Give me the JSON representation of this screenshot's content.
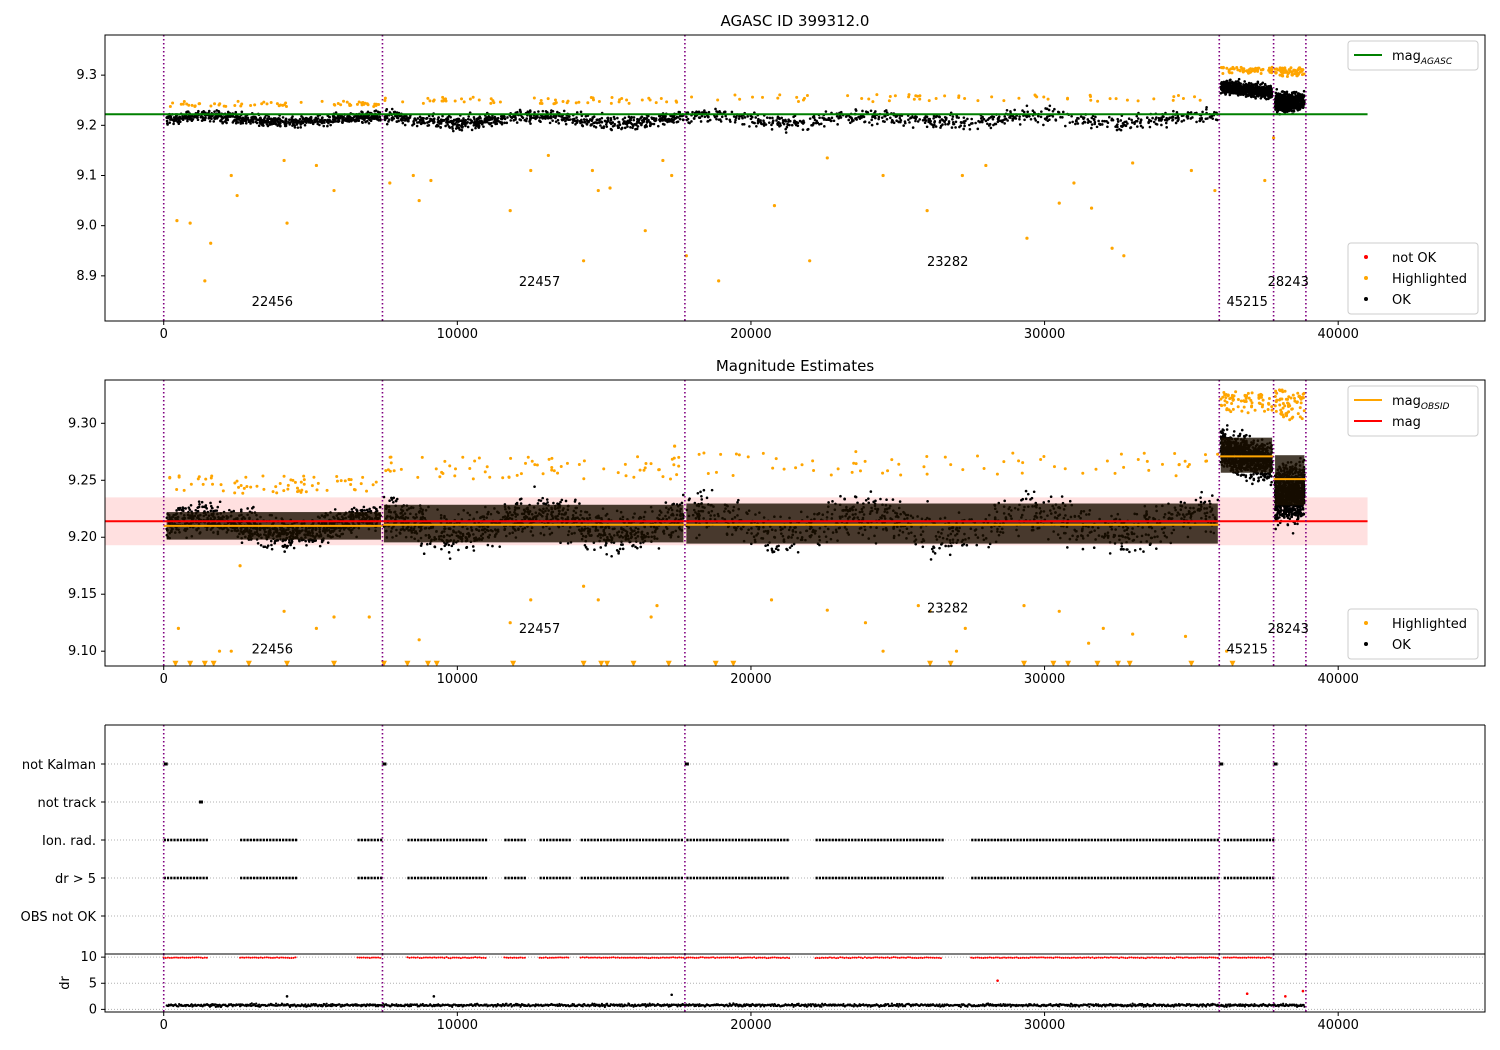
{
  "chart_data": [
    {
      "type": "scatter",
      "title": "AGASC ID 399312.0",
      "xlim": [
        -2000,
        45000
      ],
      "ylim": [
        8.81,
        9.38
      ],
      "xticks": [
        0,
        10000,
        20000,
        30000,
        40000
      ],
      "yticks": [
        8.9,
        9.0,
        9.1,
        9.2,
        9.3
      ],
      "grid": false,
      "obsid_boundaries": [
        0,
        7450,
        17750,
        35950,
        37800,
        38900
      ],
      "obsid_labels": [
        {
          "text": "22456",
          "x": 3700,
          "y": 8.84
        },
        {
          "text": "22457",
          "x": 12800,
          "y": 8.88
        },
        {
          "text": "23282",
          "x": 26700,
          "y": 8.92
        },
        {
          "text": "45215",
          "x": 36900,
          "y": 8.84
        },
        {
          "text": "28243",
          "x": 38300,
          "y": 8.88
        }
      ],
      "series": [
        {
          "name": "mag$_{AGASC}$",
          "kind": "line",
          "color": "#008000",
          "x": [
            -2000,
            41000
          ],
          "y": [
            9.222,
            9.222
          ]
        },
        {
          "name": "not OK",
          "kind": "points",
          "color": "#ff0000"
        },
        {
          "name": "Highlighted",
          "kind": "points",
          "color": "#ffa500",
          "x": [
            450,
            900,
            1400,
            1600,
            2300,
            2500,
            4100,
            4200,
            5200,
            5800,
            7700,
            8500,
            8700,
            9100,
            11800,
            12500,
            13100,
            14300,
            14600,
            14800,
            15200,
            16400,
            17000,
            17300,
            17800,
            18900,
            20800,
            22000,
            22600,
            24500,
            26000,
            27200,
            28000,
            29400,
            30500,
            31000,
            31600,
            32300,
            32700,
            33000,
            35000,
            35800,
            37500,
            37800
          ],
          "y": [
            9.01,
            9.005,
            8.89,
            8.965,
            9.1,
            9.06,
            9.13,
            9.005,
            9.12,
            9.07,
            9.085,
            9.1,
            9.05,
            9.09,
            9.03,
            9.11,
            9.14,
            8.93,
            9.11,
            9.07,
            9.075,
            8.99,
            9.13,
            9.1,
            8.94,
            8.89,
            9.04,
            8.93,
            9.135,
            9.1,
            9.03,
            9.1,
            9.12,
            8.975,
            9.045,
            9.085,
            9.035,
            8.955,
            8.94,
            9.125,
            9.11,
            9.07,
            9.09,
            9.175
          ]
        },
        {
          "name": "OK",
          "kind": "band",
          "color": "#000000",
          "segments": [
            {
              "x0": 100,
              "x1": 7400,
              "center": 9.212,
              "half": 0.018
            },
            {
              "x0": 7500,
              "x1": 17700,
              "center": 9.212,
              "half": 0.022
            },
            {
              "x0": 17800,
              "x1": 35900,
              "center": 9.212,
              "half": 0.025
            },
            {
              "x0": 36000,
              "x1": 37750,
              "center": 9.272,
              "half": 0.022
            },
            {
              "x0": 37850,
              "x1": 38850,
              "center": 9.255,
              "half": 0.03
            }
          ]
        }
      ],
      "legends": [
        {
          "position": "upper right",
          "entries": [
            {
              "label": "mag$_{AGASC}$",
              "marker": "line",
              "color": "#008000"
            }
          ]
        },
        {
          "position": "lower right",
          "entries": [
            {
              "label": "not OK",
              "marker": "dot",
              "color": "#ff0000"
            },
            {
              "label": "Highlighted",
              "marker": "dot",
              "color": "#ffa500"
            },
            {
              "label": "OK",
              "marker": "dot",
              "color": "#000000"
            }
          ]
        }
      ]
    },
    {
      "type": "scatter",
      "title": "Magnitude Estimates",
      "xlim": [
        -2000,
        45000
      ],
      "ylim": [
        9.087,
        9.338
      ],
      "xticks": [
        0,
        10000,
        20000,
        30000,
        40000
      ],
      "yticks": [
        9.1,
        9.15,
        9.2,
        9.25,
        9.3
      ],
      "grid": false,
      "obsid_boundaries": [
        0,
        7450,
        17750,
        35950,
        37800,
        38900
      ],
      "obsid_labels": [
        {
          "text": "22456",
          "x": 3700,
          "y": 9.098
        },
        {
          "text": "22457",
          "x": 12800,
          "y": 9.116
        },
        {
          "text": "23282",
          "x": 26700,
          "y": 9.134
        },
        {
          "text": "45215",
          "x": 36900,
          "y": 9.098
        },
        {
          "text": "28243",
          "x": 38300,
          "y": 9.116
        }
      ],
      "mag": 9.214,
      "mag_band": [
        9.193,
        9.235
      ],
      "mag_obsid": [
        {
          "x0": 0,
          "x1": 7450,
          "y": 9.21
        },
        {
          "x0": 7450,
          "x1": 17750,
          "y": 9.211
        },
        {
          "x0": 17750,
          "x1": 35950,
          "y": 9.211
        },
        {
          "x0": 35950,
          "x1": 37800,
          "y": 9.271
        },
        {
          "x0": 37800,
          "x1": 38900,
          "y": 9.251
        }
      ],
      "series": [
        {
          "name": "mag$_{OBSID}$",
          "kind": "segments",
          "color": "#ffa500"
        },
        {
          "name": "mag",
          "kind": "line",
          "color": "#ff0000"
        },
        {
          "name": "Highlighted",
          "kind": "points",
          "color": "#ffa500",
          "x": [
            500,
            1900,
            2300,
            2600,
            4100,
            5200,
            5800,
            7000,
            8700,
            11800,
            12500,
            14300,
            14800,
            16600,
            16800,
            17400,
            20700,
            22600,
            23900,
            24500,
            25700,
            26100,
            27000,
            27300,
            29300,
            30500,
            31500,
            32000,
            33000,
            34800,
            36200
          ],
          "y": [
            9.12,
            9.1,
            9.1,
            9.175,
            9.135,
            9.12,
            9.13,
            9.13,
            9.11,
            9.125,
            9.145,
            9.157,
            9.145,
            9.13,
            9.14,
            9.28,
            9.145,
            9.136,
            9.125,
            9.1,
            9.14,
            9.135,
            9.1,
            9.12,
            9.14,
            9.135,
            9.107,
            9.12,
            9.115,
            9.113,
            9.1
          ]
        },
        {
          "name": "Highlighted (below axis)",
          "kind": "markers",
          "color": "#ffa500",
          "x": [
            400,
            900,
            1400,
            1700,
            2900,
            4200,
            5800,
            7500,
            8300,
            9000,
            9300,
            11900,
            14300,
            14900,
            15100,
            16000,
            17200,
            18800,
            19400,
            26100,
            26800,
            29300,
            30300,
            30800,
            31800,
            32500,
            32900,
            35000,
            36400
          ],
          "y": 9.089
        },
        {
          "name": "OK",
          "kind": "band",
          "color": "#000000",
          "segments": [
            {
              "x0": 100,
              "x1": 7400,
              "center": 9.21,
              "half": 0.022
            },
            {
              "x0": 7500,
              "x1": 17700,
              "center": 9.212,
              "half": 0.03
            },
            {
              "x0": 17800,
              "x1": 35900,
              "center": 9.212,
              "half": 0.032
            },
            {
              "x0": 36000,
              "x1": 37750,
              "center": 9.272,
              "half": 0.028
            },
            {
              "x0": 37850,
              "x1": 38850,
              "center": 9.25,
              "half": 0.04
            }
          ]
        }
      ],
      "legends": [
        {
          "position": "upper right",
          "entries": [
            {
              "label": "mag$_{OBSID}$",
              "marker": "line",
              "color": "#ffa500"
            },
            {
              "label": "mag",
              "marker": "line",
              "color": "#ff0000"
            }
          ]
        },
        {
          "position": "lower right",
          "entries": [
            {
              "label": "Highlighted",
              "marker": "dot",
              "color": "#ffa500"
            },
            {
              "label": "OK",
              "marker": "dot",
              "color": "#000000"
            }
          ]
        }
      ]
    },
    {
      "type": "scatter",
      "title": "",
      "xlim": [
        -2000,
        45000
      ],
      "categories": [
        "not Kalman",
        "not track",
        "Ion. rad.",
        "dr > 5",
        "OBS not OK"
      ],
      "grid": true,
      "obsid_boundaries": [
        0,
        7450,
        17750,
        35950,
        37800,
        38900
      ],
      "flags": [
        {
          "category": "not Kalman",
          "x": [
            0,
            7450,
            17750,
            35950,
            37800
          ]
        },
        {
          "category": "not track",
          "x": [
            1200
          ]
        },
        {
          "category": "Ion. rad.",
          "x_ranges": [
            [
              0,
              1500
            ],
            [
              2600,
              4500
            ],
            [
              6600,
              7400
            ],
            [
              8300,
              11000
            ],
            [
              11600,
              12300
            ],
            [
              12800,
              13800
            ],
            [
              14200,
              17700
            ],
            [
              17800,
              21300
            ],
            [
              22200,
              26500
            ],
            [
              27500,
              35900
            ],
            [
              36100,
              37750
            ]
          ]
        },
        {
          "category": "dr > 5",
          "x_ranges": [
            [
              0,
              1500
            ],
            [
              2600,
              4500
            ],
            [
              6600,
              7400
            ],
            [
              8300,
              11000
            ],
            [
              11600,
              12300
            ],
            [
              12800,
              13800
            ],
            [
              14200,
              17700
            ],
            [
              17800,
              21300
            ],
            [
              22200,
              26500
            ],
            [
              27500,
              35900
            ],
            [
              36100,
              37750
            ]
          ]
        },
        {
          "category": "OBS not OK",
          "x": []
        }
      ]
    },
    {
      "type": "scatter",
      "title": "",
      "xlim": [
        -2000,
        45000
      ],
      "ylim": [
        -0.5,
        10.6
      ],
      "xticks": [
        0,
        10000,
        20000,
        30000,
        40000
      ],
      "yticks": [
        0,
        5,
        10
      ],
      "ylabel": "dr",
      "grid": true,
      "obsid_boundaries": [
        0,
        7450,
        17750,
        35950,
        37800,
        38900
      ],
      "series": [
        {
          "name": "dr clipped",
          "kind": "band",
          "color": "#ff0000",
          "x_ranges": [
            [
              0,
              1500
            ],
            [
              2600,
              4500
            ],
            [
              6600,
              7400
            ],
            [
              8300,
              11000
            ],
            [
              11600,
              12300
            ],
            [
              12800,
              13800
            ],
            [
              14200,
              17700
            ],
            [
              17800,
              21300
            ],
            [
              22200,
              26500
            ],
            [
              27500,
              35900
            ],
            [
              36100,
              37750
            ]
          ],
          "y": 9.9
        },
        {
          "name": "dr",
          "kind": "band",
          "color": "#000000",
          "x_ranges": [
            [
              100,
              38850
            ]
          ],
          "y": 0.8
        },
        {
          "name": "dr outliers",
          "kind": "points",
          "color": "#ff0000",
          "x": [
            28400,
            36900,
            38200,
            38800
          ],
          "y": [
            5.5,
            3.0,
            2.5,
            3.5
          ]
        },
        {
          "name": "dr outliers ok",
          "kind": "points",
          "color": "#000000",
          "x": [
            4200,
            9200,
            17300
          ],
          "y": [
            2.5,
            2.5,
            2.8
          ]
        }
      ]
    }
  ]
}
